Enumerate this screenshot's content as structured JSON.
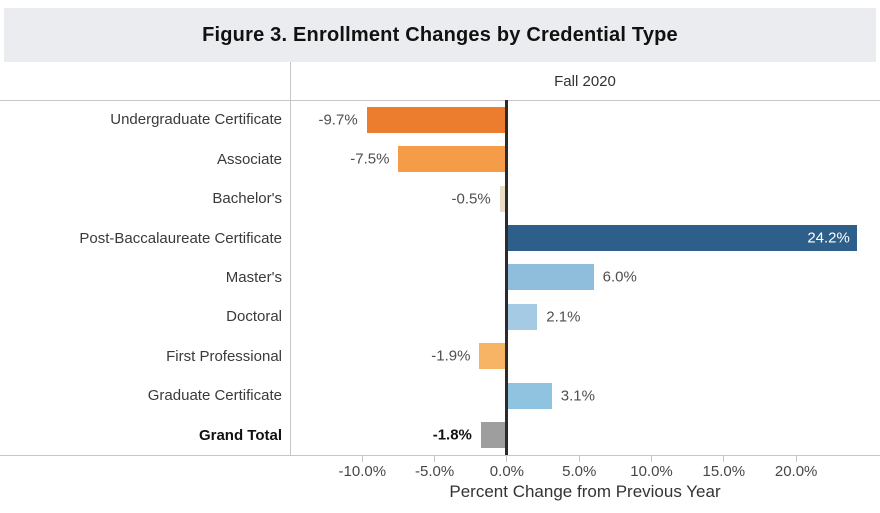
{
  "page_title": "Figure 3. Enrollment Changes by Credential Type",
  "chart_data": {
    "type": "bar",
    "orientation": "horizontal",
    "title": "Figure 3. Enrollment Changes by Credential Type",
    "column_header": "Fall 2020",
    "xlabel": "Percent Change from Previous Year",
    "x_domain": [
      -15,
      25.8
    ],
    "grid": false,
    "x_ticks": [
      {
        "value": -10,
        "label": "-10.0%"
      },
      {
        "value": -5,
        "label": "-5.0%"
      },
      {
        "value": 0,
        "label": "0.0%"
      },
      {
        "value": 5,
        "label": "5.0%"
      },
      {
        "value": 10,
        "label": "10.0%"
      },
      {
        "value": 15,
        "label": "15.0%"
      },
      {
        "value": 20,
        "label": "20.0%"
      }
    ],
    "categories": [
      "Undergraduate Certificate",
      "Associate",
      "Bachelor's",
      "Post-Baccalaureate Certificate",
      "Master's",
      "Doctoral",
      "First Professional",
      "Graduate Certificate",
      "Grand Total"
    ],
    "rows": [
      {
        "label": "Undergraduate Certificate",
        "value": -9.7,
        "display": "-9.7%",
        "color": "#ED7D2E",
        "bold": false,
        "label_inside": false
      },
      {
        "label": "Associate",
        "value": -7.5,
        "display": "-7.5%",
        "color": "#F59C49",
        "bold": false,
        "label_inside": false
      },
      {
        "label": "Bachelor's",
        "value": -0.5,
        "display": "-0.5%",
        "color": "#EADCC5",
        "bold": false,
        "label_inside": false
      },
      {
        "label": "Post-Baccalaureate Certificate",
        "value": 24.2,
        "display": "24.2%",
        "color": "#2E5E8A",
        "bold": false,
        "label_inside": true
      },
      {
        "label": "Master's",
        "value": 6.0,
        "display": "6.0%",
        "color": "#8FBEDD",
        "bold": false,
        "label_inside": false
      },
      {
        "label": "Doctoral",
        "value": 2.1,
        "display": "2.1%",
        "color": "#A5CAE3",
        "bold": false,
        "label_inside": false
      },
      {
        "label": "First Professional",
        "value": -1.9,
        "display": "-1.9%",
        "color": "#F8B465",
        "bold": false,
        "label_inside": false
      },
      {
        "label": "Graduate Certificate",
        "value": 3.1,
        "display": "3.1%",
        "color": "#8FC3E0",
        "bold": false,
        "label_inside": false
      },
      {
        "label": "Grand Total",
        "value": -1.8,
        "display": "-1.8%",
        "color": "#9E9E9E",
        "bold": true,
        "label_inside": false
      }
    ],
    "colors": {
      "title_band_bg": "#EBECEF",
      "grid_line": "#C6C6C6",
      "zero_line": "#2B2B2B",
      "negative_dark": "#ED7D2E",
      "negative_light": "#F8B465",
      "positive_dark": "#2E5E8A",
      "positive_light": "#8FBEDD",
      "total_gray": "#9E9E9E",
      "value_label_text": "#4F4F4F",
      "inside_label_text": "#FFFFFF"
    }
  }
}
